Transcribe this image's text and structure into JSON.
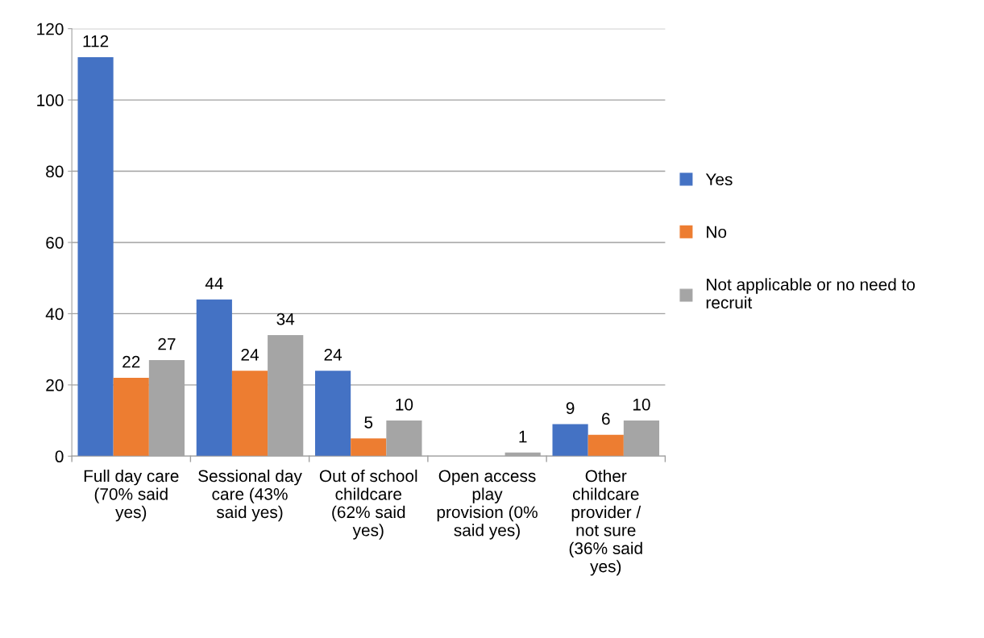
{
  "chart_data": {
    "type": "bar",
    "categories": [
      "Full day care\n(70% said\nyes)",
      "Sessional day\ncare (43%\nsaid yes)",
      "Out of school\nchildcare\n(62% said\nyes)",
      "Open access\nplay\nprovision (0%\nsaid yes)",
      "Other\nchildcare\nprovider /\nnot sure\n(36% said\nyes)"
    ],
    "series": [
      {
        "name": "Yes",
        "color": "#4472c4",
        "values": [
          112,
          44,
          24,
          0,
          9
        ],
        "value_labels": [
          "112",
          "44",
          "24",
          null,
          "9"
        ]
      },
      {
        "name": "No",
        "color": "#ed7d31",
        "values": [
          22,
          24,
          5,
          0,
          6
        ],
        "value_labels": [
          "22",
          "24",
          "5",
          null,
          "6"
        ]
      },
      {
        "name": "Not applicable or no need to\nrecruit",
        "color": "#a5a5a5",
        "values": [
          27,
          34,
          10,
          1,
          10
        ],
        "value_labels": [
          "27",
          "34",
          "10",
          "1",
          "10"
        ]
      }
    ],
    "ylim": [
      0,
      120
    ],
    "yticks": [
      0,
      20,
      40,
      60,
      80,
      100,
      120
    ],
    "grid": "y",
    "legend": "right"
  }
}
